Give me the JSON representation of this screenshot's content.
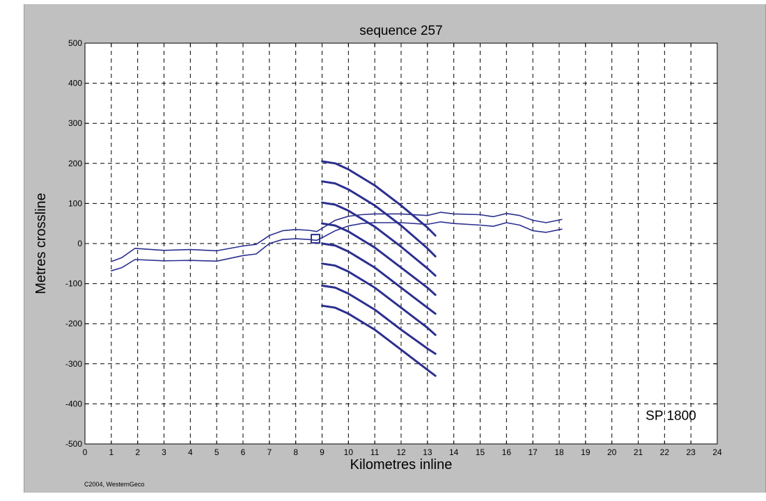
{
  "chart_data": {
    "type": "line",
    "title": "sequence 257",
    "xlabel": "Kilometres inline",
    "ylabel": "Metres crossline",
    "xlim": [
      0,
      24
    ],
    "ylim": [
      -500,
      500
    ],
    "xticks": [
      "0",
      "1",
      "2",
      "3",
      "4",
      "5",
      "6",
      "7",
      "8",
      "9",
      "10",
      "11",
      "12",
      "13",
      "14",
      "15",
      "16",
      "17",
      "18",
      "19",
      "20",
      "21",
      "22",
      "23",
      "24"
    ],
    "yticks": [
      "500",
      "400",
      "300",
      "200",
      "100",
      "0",
      "-100",
      "-200",
      "-300",
      "-400",
      "-500"
    ],
    "grid": true,
    "annotation": "SP 1800",
    "copyright": "C2004, WesternGeco",
    "marker": {
      "shape": "square",
      "x": 8.75,
      "y": 12
    },
    "series": [
      {
        "points": [
          [
            1.0,
            -45
          ],
          [
            1.4,
            -35
          ],
          [
            1.9,
            -12
          ],
          [
            3,
            -17
          ],
          [
            4,
            -15
          ],
          [
            5,
            -18
          ],
          [
            6,
            -6
          ],
          [
            6.5,
            -2
          ],
          [
            7,
            20
          ],
          [
            7.5,
            32
          ],
          [
            8,
            35
          ],
          [
            8.5,
            33
          ],
          [
            8.8,
            30
          ],
          [
            9.1,
            42
          ],
          [
            9.5,
            58
          ],
          [
            10,
            68
          ],
          [
            10.5,
            72
          ],
          [
            11,
            74
          ],
          [
            12,
            74
          ],
          [
            13,
            70
          ],
          [
            13.5,
            78
          ],
          [
            14,
            74
          ],
          [
            15,
            72
          ],
          [
            15.5,
            67
          ],
          [
            16,
            75
          ],
          [
            16.5,
            70
          ],
          [
            17,
            58
          ],
          [
            17.5,
            52
          ],
          [
            18.1,
            60
          ]
        ]
      },
      {
        "points": [
          [
            1.0,
            -68
          ],
          [
            1.4,
            -60
          ],
          [
            1.9,
            -40
          ],
          [
            3,
            -43
          ],
          [
            4,
            -42
          ],
          [
            5,
            -44
          ],
          [
            6,
            -30
          ],
          [
            6.5,
            -26
          ],
          [
            7,
            0
          ],
          [
            7.5,
            10
          ],
          [
            8,
            12
          ],
          [
            8.5,
            10
          ],
          [
            8.8,
            8
          ],
          [
            9.1,
            18
          ],
          [
            9.5,
            32
          ],
          [
            10,
            44
          ],
          [
            10.5,
            50
          ],
          [
            11,
            52
          ],
          [
            12,
            52
          ],
          [
            13,
            48
          ],
          [
            13.5,
            54
          ],
          [
            14,
            50
          ],
          [
            15,
            46
          ],
          [
            15.5,
            43
          ],
          [
            16,
            52
          ],
          [
            16.5,
            46
          ],
          [
            17,
            32
          ],
          [
            17.5,
            28
          ],
          [
            18.1,
            36
          ]
        ]
      },
      {
        "points": [
          [
            9.0,
            205
          ],
          [
            9.5,
            200
          ],
          [
            10,
            185
          ],
          [
            11,
            145
          ],
          [
            12,
            95
          ],
          [
            13,
            40
          ],
          [
            13.3,
            20
          ]
        ]
      },
      {
        "points": [
          [
            9.0,
            155
          ],
          [
            9.5,
            150
          ],
          [
            10,
            135
          ],
          [
            11,
            95
          ],
          [
            12,
            45
          ],
          [
            13,
            -12
          ],
          [
            13.3,
            -32
          ]
        ]
      },
      {
        "points": [
          [
            9.0,
            102
          ],
          [
            9.5,
            97
          ],
          [
            10,
            82
          ],
          [
            11,
            42
          ],
          [
            12,
            -8
          ],
          [
            13,
            -62
          ],
          [
            13.3,
            -80
          ]
        ]
      },
      {
        "points": [
          [
            9.0,
            50
          ],
          [
            9.5,
            45
          ],
          [
            10,
            30
          ],
          [
            11,
            -10
          ],
          [
            12,
            -60
          ],
          [
            13,
            -110
          ],
          [
            13.3,
            -128
          ]
        ]
      },
      {
        "points": [
          [
            9.0,
            0
          ],
          [
            9.5,
            -5
          ],
          [
            10,
            -20
          ],
          [
            11,
            -60
          ],
          [
            12,
            -110
          ],
          [
            13,
            -160
          ],
          [
            13.3,
            -175
          ]
        ]
      },
      {
        "points": [
          [
            9.0,
            -50
          ],
          [
            9.5,
            -55
          ],
          [
            10,
            -70
          ],
          [
            11,
            -110
          ],
          [
            12,
            -160
          ],
          [
            13,
            -210
          ],
          [
            13.3,
            -228
          ]
        ]
      },
      {
        "points": [
          [
            9.0,
            -105
          ],
          [
            9.5,
            -110
          ],
          [
            10,
            -125
          ],
          [
            11,
            -165
          ],
          [
            12,
            -215
          ],
          [
            13,
            -262
          ],
          [
            13.3,
            -275
          ]
        ]
      },
      {
        "points": [
          [
            9.0,
            -155
          ],
          [
            9.5,
            -160
          ],
          [
            10,
            -175
          ],
          [
            11,
            -215
          ],
          [
            12,
            -265
          ],
          [
            13,
            -315
          ],
          [
            13.3,
            -330
          ]
        ]
      }
    ],
    "colors": {
      "line": "#2b2f8f",
      "background": "#c0c0c0",
      "plot": "#ffffff"
    }
  }
}
